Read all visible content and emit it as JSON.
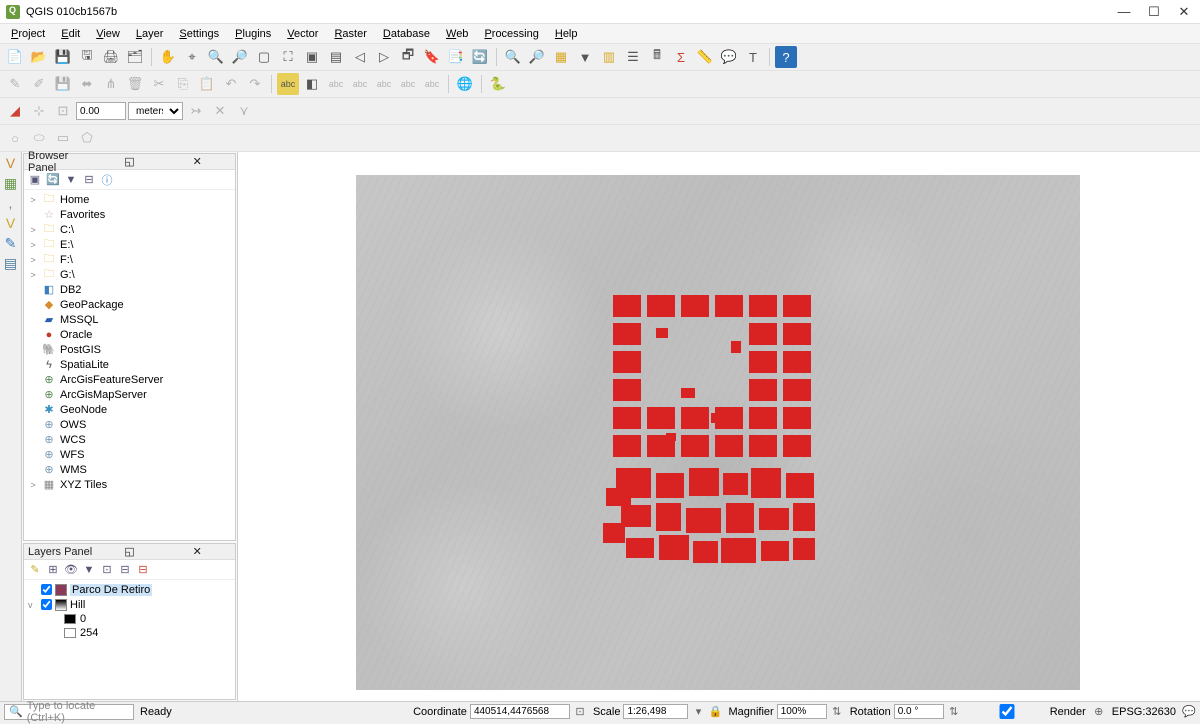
{
  "window": {
    "title": "QGIS 010cb1567b"
  },
  "menubar": [
    "Project",
    "Edit",
    "View",
    "Layer",
    "Settings",
    "Plugins",
    "Vector",
    "Raster",
    "Database",
    "Web",
    "Processing",
    "Help"
  ],
  "toolbar2_input": {
    "value": "0.00",
    "unit": "meters"
  },
  "browser_panel": {
    "title": "Browser Panel",
    "items": [
      {
        "expander": ">",
        "icon": "🗀",
        "icon_color": "#e8b83f",
        "label": "Home"
      },
      {
        "expander": " ",
        "icon": "☆",
        "icon_color": "#caa",
        "label": "Favorites"
      },
      {
        "expander": ">",
        "icon": "🗀",
        "icon_color": "#e8b83f",
        "label": "C:\\"
      },
      {
        "expander": ">",
        "icon": "🗀",
        "icon_color": "#e8b83f",
        "label": "E:\\"
      },
      {
        "expander": ">",
        "icon": "🗀",
        "icon_color": "#e8b83f",
        "label": "F:\\"
      },
      {
        "expander": ">",
        "icon": "🗀",
        "icon_color": "#e8b83f",
        "label": "G:\\"
      },
      {
        "expander": " ",
        "icon": "◧",
        "icon_color": "#3a7fbf",
        "label": "DB2"
      },
      {
        "expander": " ",
        "icon": "◆",
        "icon_color": "#d88b2a",
        "label": "GeoPackage"
      },
      {
        "expander": " ",
        "icon": "▰",
        "icon_color": "#2a5fb0",
        "label": "MSSQL"
      },
      {
        "expander": " ",
        "icon": "●",
        "icon_color": "#c43a2a",
        "label": "Oracle"
      },
      {
        "expander": " ",
        "icon": "🐘",
        "icon_color": "#3a6fa8",
        "label": "PostGIS"
      },
      {
        "expander": " ",
        "icon": "ϟ",
        "icon_color": "#555",
        "label": "SpatiaLite"
      },
      {
        "expander": " ",
        "icon": "⊕",
        "icon_color": "#5a8a55",
        "label": "ArcGisFeatureServer"
      },
      {
        "expander": " ",
        "icon": "⊕",
        "icon_color": "#5a8a55",
        "label": "ArcGisMapServer"
      },
      {
        "expander": " ",
        "icon": "✱",
        "icon_color": "#3a8fbf",
        "label": "GeoNode"
      },
      {
        "expander": " ",
        "icon": "⊕",
        "icon_color": "#7a9ab5",
        "label": "OWS"
      },
      {
        "expander": " ",
        "icon": "⊕",
        "icon_color": "#7a9ab5",
        "label": "WCS"
      },
      {
        "expander": " ",
        "icon": "⊕",
        "icon_color": "#7a9ab5",
        "label": "WFS"
      },
      {
        "expander": " ",
        "icon": "⊕",
        "icon_color": "#7a9ab5",
        "label": "WMS"
      },
      {
        "expander": ">",
        "icon": "▦",
        "icon_color": "#888",
        "label": "XYZ Tiles"
      }
    ]
  },
  "layers_panel": {
    "title": "Layers Panel",
    "layers": [
      {
        "checked": true,
        "swatch": "#8a3a5a",
        "label": "Parco De Retiro",
        "selected": true
      },
      {
        "checked": true,
        "swatch_grad": true,
        "label": "Hill",
        "expanded": true,
        "children": [
          {
            "color": "#000000",
            "label": "0"
          },
          {
            "color": "#ffffff",
            "label": "254"
          }
        ]
      }
    ]
  },
  "canvas": {
    "vector_color": "#d92323",
    "hillshade_base": "#bdbdbd"
  },
  "statusbar": {
    "locate_placeholder": "Type to locate (Ctrl+K)",
    "ready": "Ready",
    "coordinate_label": "Coordinate",
    "coordinate": "440514,4476568",
    "scale_label": "Scale",
    "scale": "1:26,498",
    "magnifier_label": "Magnifier",
    "magnifier": "100%",
    "rotation_label": "Rotation",
    "rotation": "0.0 °",
    "render_label": "Render",
    "crs": "EPSG:32630"
  }
}
